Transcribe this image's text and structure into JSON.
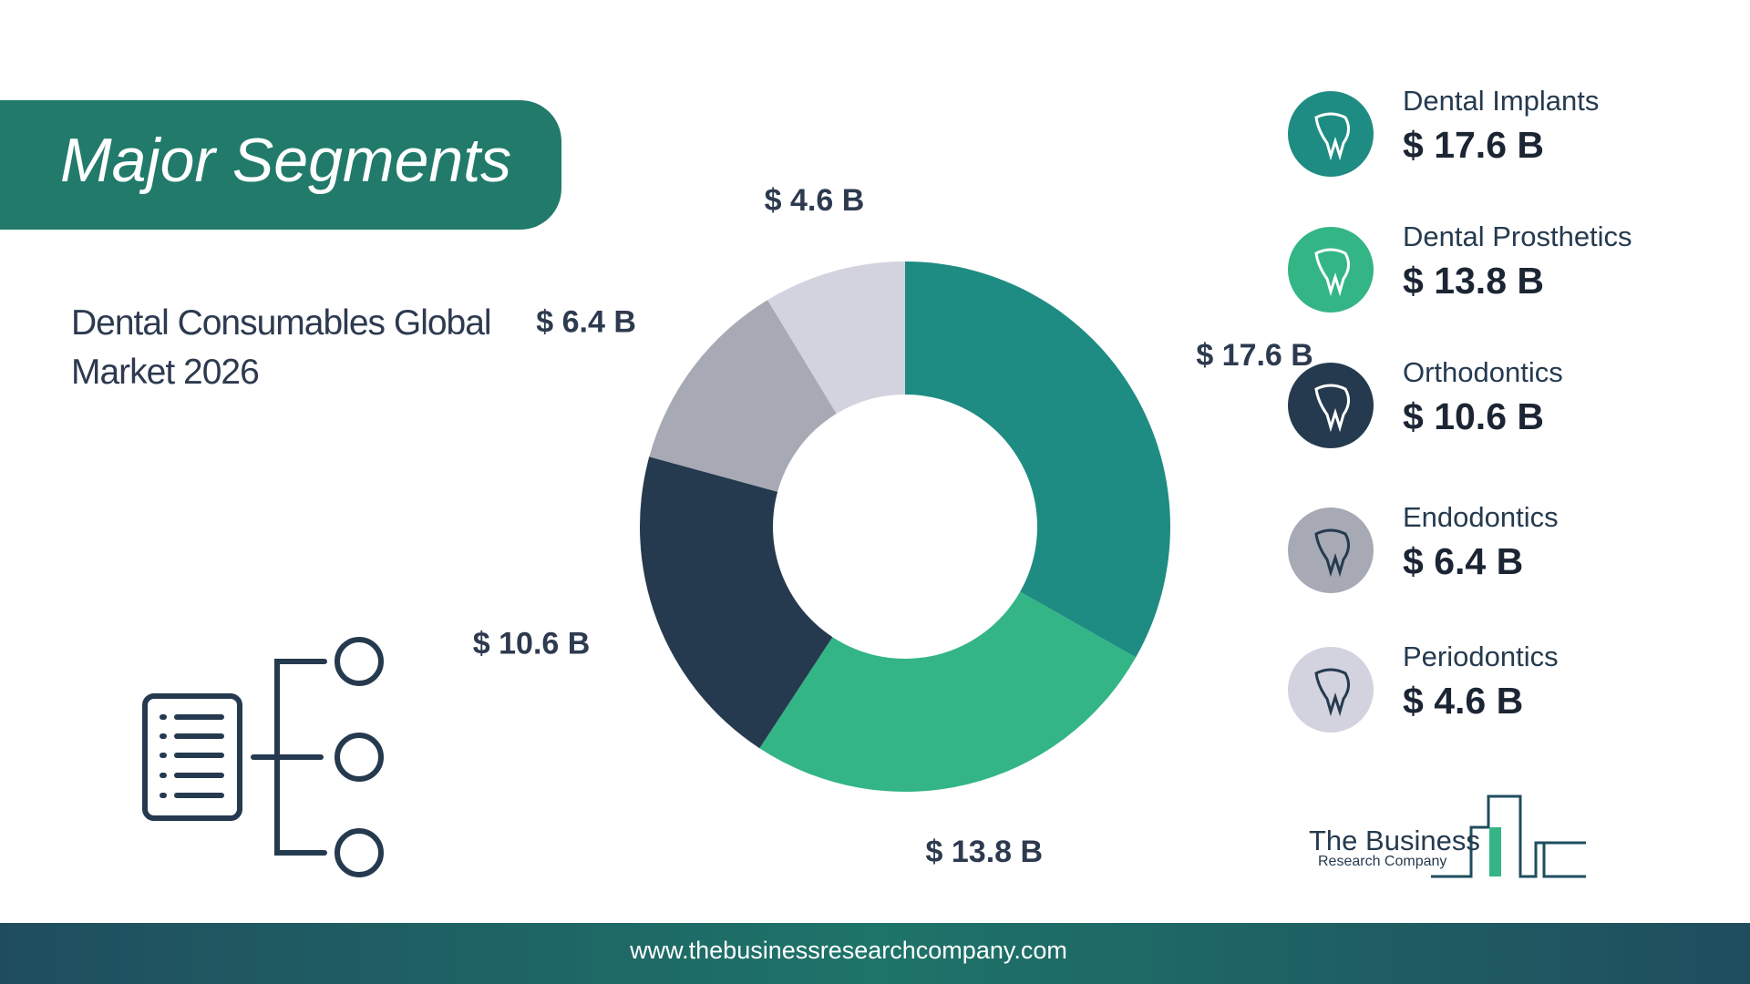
{
  "chart_data": {
    "type": "pie",
    "donut": true,
    "title": "Major Segments",
    "subtitle": "Dental Consumables Global Market 2026",
    "categories": [
      "Dental Implants",
      "Dental Prosthetics",
      "Orthodontics",
      "Endodontics",
      "Periodontics"
    ],
    "values": [
      17.6,
      13.8,
      10.6,
      6.4,
      4.6
    ],
    "value_labels": [
      "$ 17.6 B",
      "$ 13.8 B",
      "$ 10.6 B",
      "$ 6.4 B",
      "$ 4.6 B"
    ],
    "colors": [
      "#1e8c82",
      "#33b586",
      "#253a4f",
      "#a7aab4",
      "#d2d3de"
    ]
  },
  "footer": {
    "url": "www.thebusinessresearchcompany.com"
  },
  "logo": {
    "line1": "The Business",
    "line2": "Research Company"
  }
}
